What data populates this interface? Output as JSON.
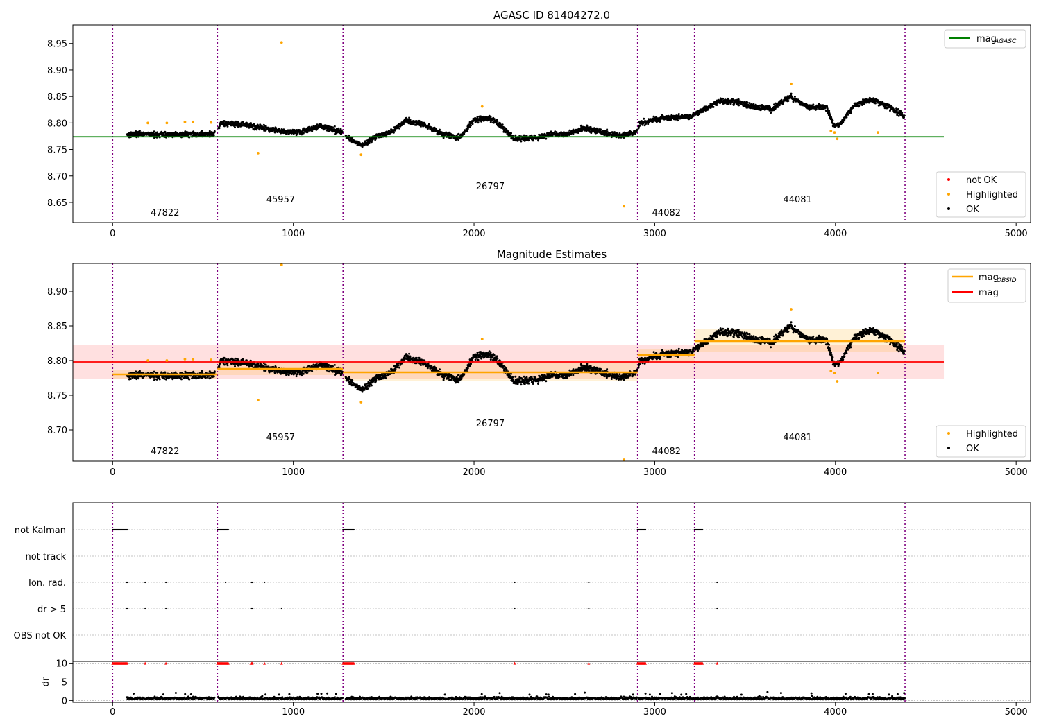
{
  "chart_data": [
    {
      "type": "scatter",
      "title": "AGASC ID 81404272.0",
      "xlim": [
        -220,
        5080
      ],
      "ylim": [
        8.612,
        8.985
      ],
      "xticks": [
        0,
        1000,
        2000,
        3000,
        4000,
        5000
      ],
      "yticks": [
        8.65,
        8.7,
        8.75,
        8.8,
        8.85,
        8.9,
        8.95
      ],
      "obsid_boundaries": [
        0,
        580,
        1275,
        2905,
        3220,
        4385
      ],
      "obsid_labels": [
        {
          "text": "47822",
          "x": 290,
          "y": 8.625
        },
        {
          "text": "45957",
          "x": 930,
          "y": 8.65
        },
        {
          "text": "26797",
          "x": 2090,
          "y": 8.675
        },
        {
          "text": "44082",
          "x": 3065,
          "y": 8.625
        },
        {
          "text": "44081",
          "x": 3790,
          "y": 8.65
        }
      ],
      "reference_lines": [
        {
          "name": "mag",
          "subscript": "AGASC",
          "y": 8.774,
          "x": [
            -220,
            4600
          ],
          "color": "#008000"
        }
      ],
      "highlighted_points": [
        [
          195,
          8.8
        ],
        [
          300,
          8.8
        ],
        [
          400,
          8.802
        ],
        [
          445,
          8.802
        ],
        [
          545,
          8.801
        ],
        [
          805,
          8.743
        ],
        [
          935,
          8.952
        ],
        [
          1375,
          8.74
        ],
        [
          2045,
          8.831
        ],
        [
          2830,
          8.643
        ],
        [
          3755,
          8.874
        ],
        [
          3975,
          8.785
        ],
        [
          3995,
          8.782
        ],
        [
          4010,
          8.77
        ],
        [
          4235,
          8.782
        ]
      ],
      "not_ok_points": [],
      "legends": [
        {
          "placement": "top-right",
          "entries": [
            {
              "label": "mag",
              "subscript": "AGASC",
              "kind": "line",
              "color": "#008000"
            }
          ]
        },
        {
          "placement": "bottom-right",
          "entries": [
            {
              "label": "not OK",
              "kind": "dot",
              "color": "#ff0000"
            },
            {
              "label": "Highlighted",
              "kind": "dot",
              "color": "#ffa500"
            },
            {
              "label": "OK",
              "kind": "dot",
              "color": "#000000"
            }
          ]
        }
      ]
    },
    {
      "type": "scatter",
      "title": "Magnitude Estimates",
      "xlim": [
        -220,
        5080
      ],
      "ylim": [
        8.655,
        8.94
      ],
      "xticks": [
        0,
        1000,
        2000,
        3000,
        4000,
        5000
      ],
      "yticks": [
        8.7,
        8.75,
        8.8,
        8.85,
        8.9
      ],
      "obsid_boundaries": [
        0,
        580,
        1275,
        2905,
        3220,
        4385
      ],
      "obsid_labels": [
        {
          "text": "47822",
          "x": 290,
          "y": 8.665
        },
        {
          "text": "45957",
          "x": 930,
          "y": 8.685
        },
        {
          "text": "26797",
          "x": 2090,
          "y": 8.705
        },
        {
          "text": "44082",
          "x": 3065,
          "y": 8.665
        },
        {
          "text": "44081",
          "x": 3790,
          "y": 8.685
        }
      ],
      "mag_line": {
        "y": 8.798,
        "band": [
          8.774,
          8.822
        ],
        "x": [
          -220,
          4600
        ],
        "color": "#ff0000"
      },
      "obsid_mags": [
        {
          "x": [
            0,
            580
          ],
          "y": 8.78,
          "band": [
            8.774,
            8.787
          ]
        },
        {
          "x": [
            580,
            1275
          ],
          "y": 8.788,
          "band": [
            8.779,
            8.798
          ]
        },
        {
          "x": [
            1275,
            2905
          ],
          "y": 8.783,
          "band": [
            8.77,
            8.797
          ]
        },
        {
          "x": [
            2905,
            3220
          ],
          "y": 8.808,
          "band": [
            8.8,
            8.816
          ]
        },
        {
          "x": [
            3220,
            4385
          ],
          "y": 8.828,
          "band": [
            8.812,
            8.845
          ]
        }
      ],
      "highlighted_points": [
        [
          195,
          8.8
        ],
        [
          300,
          8.8
        ],
        [
          400,
          8.802
        ],
        [
          445,
          8.802
        ],
        [
          545,
          8.801
        ],
        [
          805,
          8.743
        ],
        [
          935,
          8.938
        ],
        [
          1375,
          8.74
        ],
        [
          2045,
          8.831
        ],
        [
          2830,
          8.657
        ],
        [
          3755,
          8.874
        ],
        [
          3975,
          8.785
        ],
        [
          3995,
          8.782
        ],
        [
          4010,
          8.77
        ],
        [
          4235,
          8.782
        ]
      ],
      "legends": [
        {
          "placement": "top-right",
          "entries": [
            {
              "label": "mag",
              "subscript": "OBSID",
              "kind": "line",
              "color": "#ffa500"
            },
            {
              "label": "mag",
              "subscript": "",
              "kind": "line",
              "color": "#ff0000"
            }
          ]
        },
        {
          "placement": "bottom-right",
          "entries": [
            {
              "label": "Highlighted",
              "kind": "dot",
              "color": "#ffa500"
            },
            {
              "label": "OK",
              "kind": "dot",
              "color": "#000000"
            }
          ]
        }
      ]
    },
    {
      "type": "scatter",
      "xlim": [
        -220,
        5080
      ],
      "xticks": [
        0,
        1000,
        2000,
        3000,
        4000,
        5000
      ],
      "obsid_boundaries": [
        0,
        580,
        1275,
        2905,
        3220,
        4385
      ],
      "flag_rows": [
        "not Kalman",
        "not track",
        "Ion. rad.",
        "dr > 5",
        "OBS not OK"
      ],
      "flag_events": {
        "not Kalman": [
          [
            0,
            80
          ],
          [
            580,
            640
          ],
          [
            1275,
            1335
          ],
          [
            2905,
            2950
          ],
          [
            3220,
            3265
          ]
        ],
        "not track": [],
        "Ion. rad.": [
          [
            75,
            85
          ],
          [
            180,
            180
          ],
          [
            295,
            295
          ],
          [
            625,
            625
          ],
          [
            765,
            775
          ],
          [
            840,
            840
          ],
          [
            2225,
            2225
          ],
          [
            2635,
            2635
          ],
          [
            3345,
            3345
          ]
        ],
        "dr > 5": [
          [
            75,
            85
          ],
          [
            180,
            180
          ],
          [
            295,
            295
          ],
          [
            765,
            775
          ],
          [
            935,
            935
          ],
          [
            2225,
            2225
          ],
          [
            2635,
            2635
          ],
          [
            3345,
            3345
          ]
        ],
        "OBS not OK": []
      },
      "dr_panel": {
        "ylabel": "dr",
        "ylim": [
          -0.5,
          10.5
        ],
        "yticks": [
          0,
          5,
          10
        ],
        "clipped_points": [
          [
            0,
            80
          ],
          [
            180,
            180
          ],
          [
            295,
            295
          ],
          [
            580,
            640
          ],
          [
            765,
            775
          ],
          [
            840,
            840
          ],
          [
            935,
            935
          ],
          [
            1275,
            1335
          ],
          [
            2225,
            2225
          ],
          [
            2635,
            2635
          ],
          [
            2905,
            2950
          ],
          [
            3220,
            3265
          ],
          [
            3345,
            3345
          ]
        ]
      }
    }
  ]
}
